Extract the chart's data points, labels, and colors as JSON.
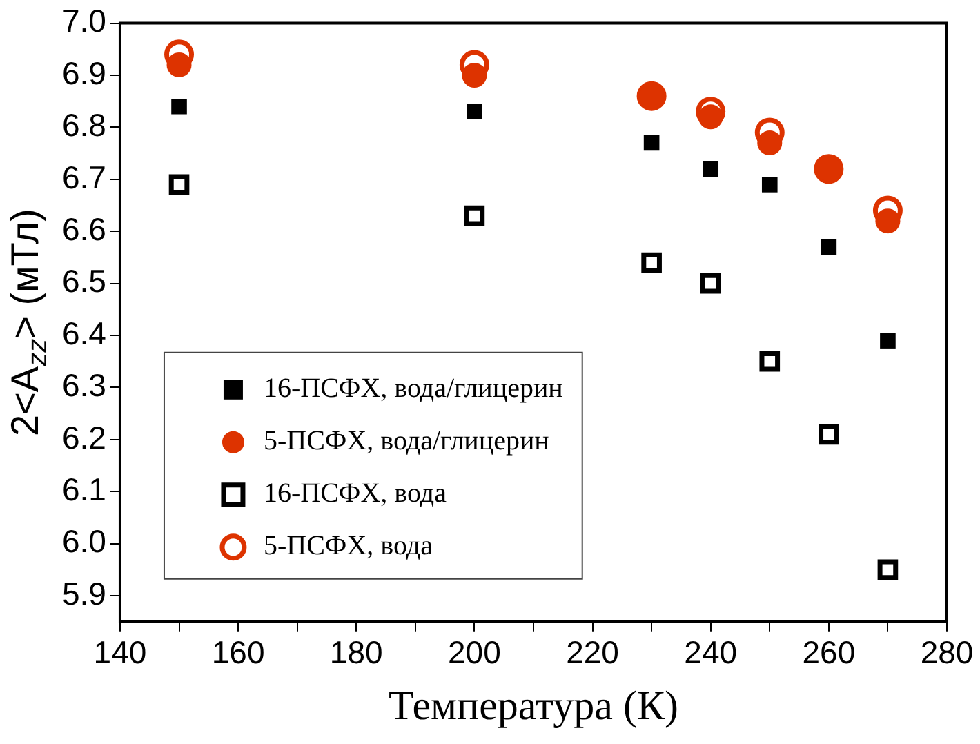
{
  "chart_data": {
    "type": "scatter",
    "xlabel": "Температура (К)",
    "ylabel": "2<A$_{zz}$> (мТл)",
    "x": [
      150,
      200,
      230,
      240,
      250,
      260,
      270
    ],
    "series": [
      {
        "name": "16-ПСФХ, вода/глицерин",
        "color": "#000000",
        "marker": "square",
        "values": [
          6.84,
          6.83,
          6.77,
          6.72,
          6.69,
          6.57,
          6.39
        ]
      },
      {
        "name": "5-ПСФХ, вода/глицерин",
        "color": "#dd3300",
        "marker": "circle",
        "values": [
          6.92,
          6.9,
          6.86,
          6.82,
          6.77,
          6.72,
          6.62
        ]
      },
      {
        "name": "16-ПСФХ, вода",
        "color": "#000000",
        "marker": "square",
        "values": [
          6.69,
          6.63,
          6.54,
          6.5,
          6.35,
          6.21,
          5.95
        ]
      },
      {
        "name": "5-ПСФХ, вода",
        "color": "#dd3300",
        "marker": "circle",
        "values": [
          6.94,
          6.92,
          6.86,
          6.83,
          6.79,
          6.72,
          6.64
        ]
      }
    ],
    "xlim": [
      140,
      280
    ],
    "xticks": [
      140,
      {
        "value": 150,
        "label": null
      },
      160,
      {
        "value": 170,
        "label": null
      },
      180,
      {
        "value": 190,
        "label": null
      },
      200,
      {
        "value": 210,
        "label": null
      },
      220,
      {
        "value": 230,
        "label": null
      },
      240,
      {
        "value": 250,
        "label": null
      },
      260,
      {
        "value": 270,
        "label": null
      },
      280
    ],
    "ylim": [
      5.85,
      7.0
    ],
    "yticks": [
      5.9,
      {
        "value": 6,
        "label": "6.0"
      },
      6.1,
      6.2,
      6.3,
      6.4,
      6.5,
      6.6,
      6.7,
      6.8,
      6.9,
      {
        "value": 7,
        "label": "7.0"
      }
    ],
    "grid": false,
    "legend": "bottom left"
  }
}
